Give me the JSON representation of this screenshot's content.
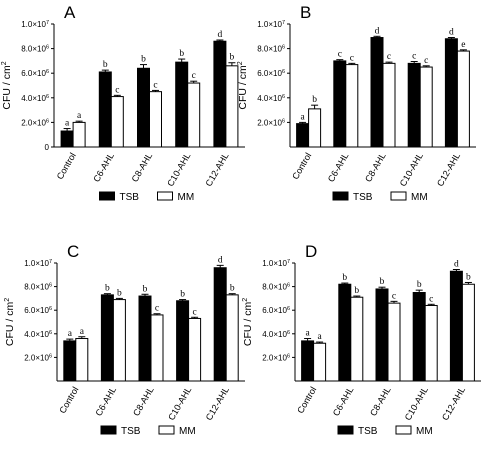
{
  "chart_data": [
    {
      "type": "bar",
      "title": "A",
      "ylabel": "CFU / cm",
      "ylabel_sup": "2",
      "ylim": [
        0,
        10000000
      ],
      "yticks": [
        {
          "value": 0,
          "mant": "0",
          "exp": ""
        },
        {
          "value": 2000000,
          "mant": "2.0×10",
          "exp": "6"
        },
        {
          "value": 4000000,
          "mant": "4.0×10",
          "exp": "6"
        },
        {
          "value": 6000000,
          "mant": "6.0×10",
          "exp": "6"
        },
        {
          "value": 8000000,
          "mant": "8.0×10",
          "exp": "6"
        },
        {
          "value": 10000000,
          "mant": "1.0×10",
          "exp": "7"
        }
      ],
      "categories": [
        "Control",
        "C6-AHL",
        "C8-AHL",
        "C10-AHL",
        "C12-AHL"
      ],
      "series": [
        {
          "name": "TSB",
          "color": "#000000",
          "values": [
            1300000,
            6100000,
            6400000,
            6900000,
            8600000
          ],
          "errors": [
            200000,
            150000,
            300000,
            250000,
            100000
          ],
          "labels": [
            "a",
            "b",
            "b",
            "b",
            "d"
          ]
        },
        {
          "name": "MM",
          "color": "#ffffff",
          "values": [
            2000000,
            4100000,
            4500000,
            5200000,
            6600000
          ],
          "errors": [
            100000,
            100000,
            100000,
            150000,
            250000
          ],
          "labels": [
            "a",
            "c",
            "c",
            "c",
            "b"
          ]
        }
      ],
      "legend_position": "bottom"
    },
    {
      "type": "bar",
      "title": "B",
      "ylabel": "CFU / cm",
      "ylabel_sup": "2",
      "ylim": [
        0,
        10000000
      ],
      "yticks": [
        {
          "value": 2000000,
          "mant": "2.0×10",
          "exp": "6"
        },
        {
          "value": 4000000,
          "mant": "4.0×10",
          "exp": "6"
        },
        {
          "value": 6000000,
          "mant": "6.0×10",
          "exp": "6"
        },
        {
          "value": 8000000,
          "mant": "8.0×10",
          "exp": "6"
        },
        {
          "value": 10000000,
          "mant": "1.0×10",
          "exp": "7"
        }
      ],
      "categories": [
        "Control",
        "C6-AHL",
        "C8-AHL",
        "C10-AHL",
        "C12-AHL"
      ],
      "series": [
        {
          "name": "TSB",
          "color": "#000000",
          "values": [
            1900000,
            7000000,
            8900000,
            6800000,
            8800000
          ],
          "errors": [
            100000,
            100000,
            100000,
            150000,
            100000
          ],
          "labels": [
            "a",
            "c",
            "d",
            "c",
            "d"
          ]
        },
        {
          "name": "MM",
          "color": "#ffffff",
          "values": [
            3100000,
            6700000,
            6800000,
            6500000,
            7800000
          ],
          "errors": [
            300000,
            100000,
            100000,
            100000,
            100000
          ],
          "labels": [
            "b",
            "c",
            "c",
            "c",
            "e"
          ]
        }
      ],
      "legend_position": "bottom"
    },
    {
      "type": "bar",
      "title": "C",
      "ylabel": "CFU / cm",
      "ylabel_sup": "2",
      "ylim": [
        0,
        10000000
      ],
      "yticks": [
        {
          "value": 2000000,
          "mant": "2.0×10",
          "exp": "6"
        },
        {
          "value": 4000000,
          "mant": "4.0×10",
          "exp": "6"
        },
        {
          "value": 6000000,
          "mant": "6.0×10",
          "exp": "6"
        },
        {
          "value": 8000000,
          "mant": "8.0×10",
          "exp": "6"
        },
        {
          "value": 10000000,
          "mant": "1.0×10",
          "exp": "7"
        }
      ],
      "categories": [
        "Control",
        "C6-AHL",
        "C8-AHL",
        "C10-AHL",
        "C12-AHL"
      ],
      "series": [
        {
          "name": "TSB",
          "color": "#000000",
          "values": [
            3400000,
            7300000,
            7200000,
            6800000,
            9600000
          ],
          "errors": [
            150000,
            100000,
            150000,
            100000,
            200000
          ],
          "labels": [
            "a",
            "b",
            "b",
            "b",
            "d"
          ]
        },
        {
          "name": "MM",
          "color": "#ffffff",
          "values": [
            3600000,
            6900000,
            5600000,
            5300000,
            7300000
          ],
          "errors": [
            150000,
            100000,
            100000,
            100000,
            100000
          ],
          "labels": [
            "a",
            "b",
            "c",
            "c",
            "b"
          ]
        }
      ],
      "legend_position": "bottom"
    },
    {
      "type": "bar",
      "title": "D",
      "ylabel": "CFU / cm",
      "ylabel_sup": "2",
      "ylim": [
        0,
        10000000
      ],
      "yticks": [
        {
          "value": 2000000,
          "mant": "2.0×10",
          "exp": "6"
        },
        {
          "value": 4000000,
          "mant": "4.0×10",
          "exp": "6"
        },
        {
          "value": 6000000,
          "mant": "6.0×10",
          "exp": "6"
        },
        {
          "value": 8000000,
          "mant": "8.0×10",
          "exp": "6"
        },
        {
          "value": 10000000,
          "mant": "1.0×10",
          "exp": "7"
        }
      ],
      "categories": [
        "Control",
        "C6-AHL",
        "C8-AHL",
        "C10-AHL",
        "C12-AHL"
      ],
      "series": [
        {
          "name": "TSB",
          "color": "#000000",
          "values": [
            3400000,
            8200000,
            7800000,
            7500000,
            9300000
          ],
          "errors": [
            200000,
            100000,
            150000,
            200000,
            150000
          ],
          "labels": [
            "a",
            "b",
            "b",
            "b",
            "d"
          ]
        },
        {
          "name": "MM",
          "color": "#ffffff",
          "values": [
            3200000,
            7100000,
            6600000,
            6400000,
            8200000
          ],
          "errors": [
            100000,
            100000,
            150000,
            100000,
            150000
          ],
          "labels": [
            "a",
            "b",
            "c",
            "c",
            "b"
          ]
        }
      ],
      "legend_position": "bottom"
    }
  ]
}
